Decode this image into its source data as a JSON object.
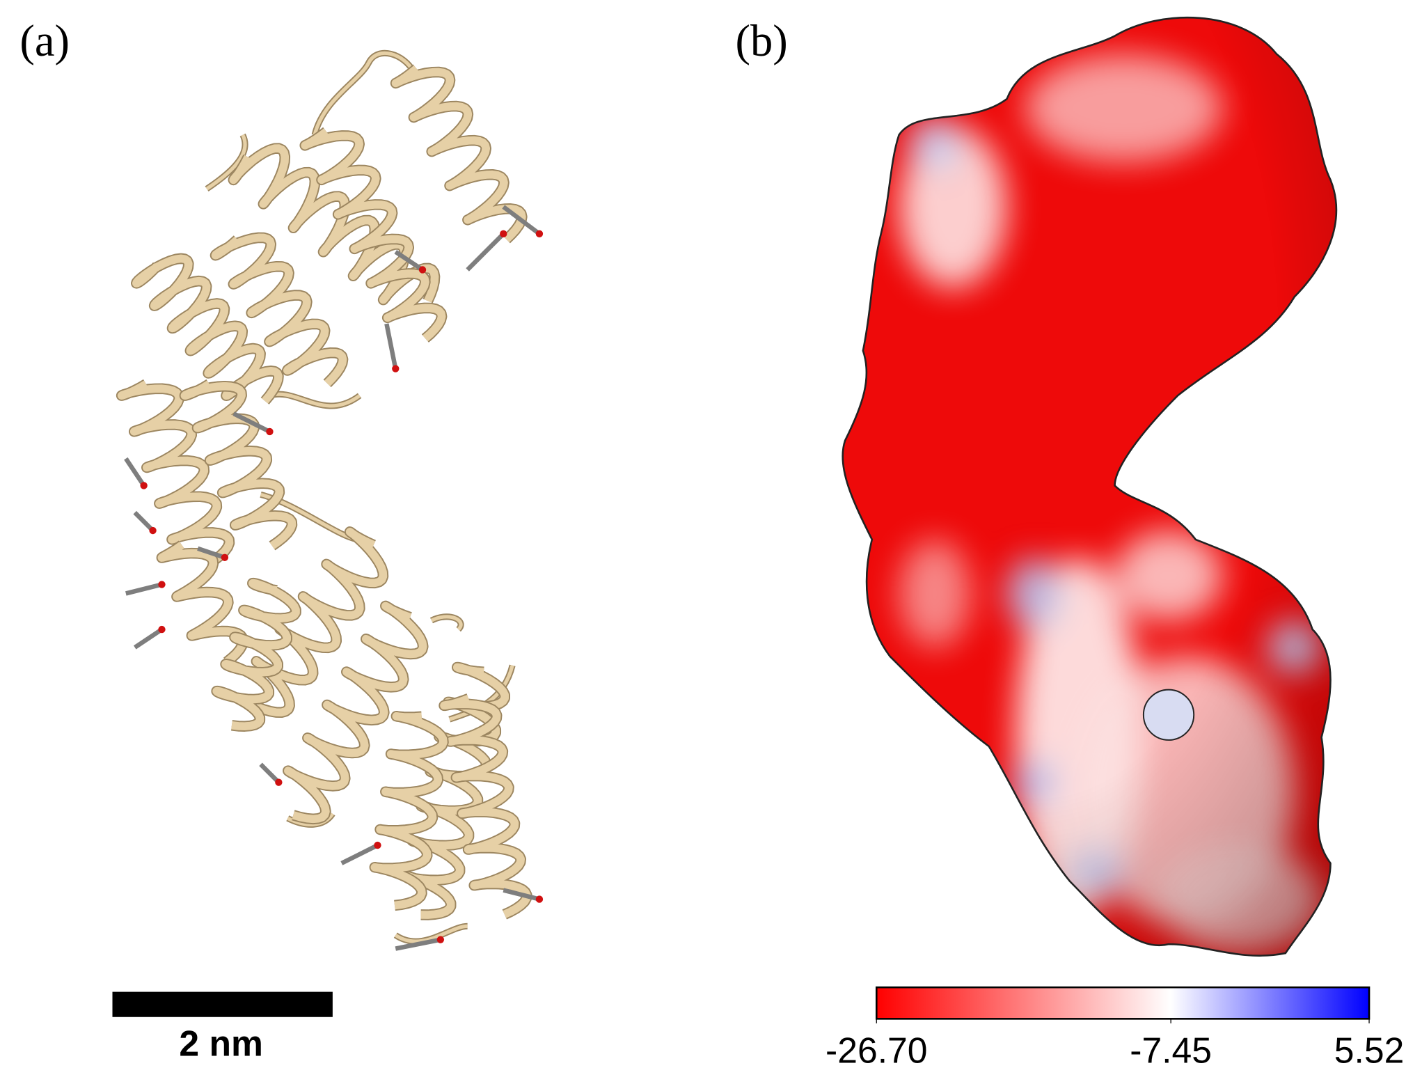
{
  "panel_a": {
    "label": "(a)",
    "scale_bar_label": "2 nm"
  },
  "panel_b": {
    "label": "(b)",
    "colorbar": {
      "ticks": [
        {
          "value": -26.7,
          "label": "-26.70"
        },
        {
          "value": -7.45,
          "label": "-7.45"
        },
        {
          "value": 5.52,
          "label": "5.52"
        }
      ]
    }
  }
}
